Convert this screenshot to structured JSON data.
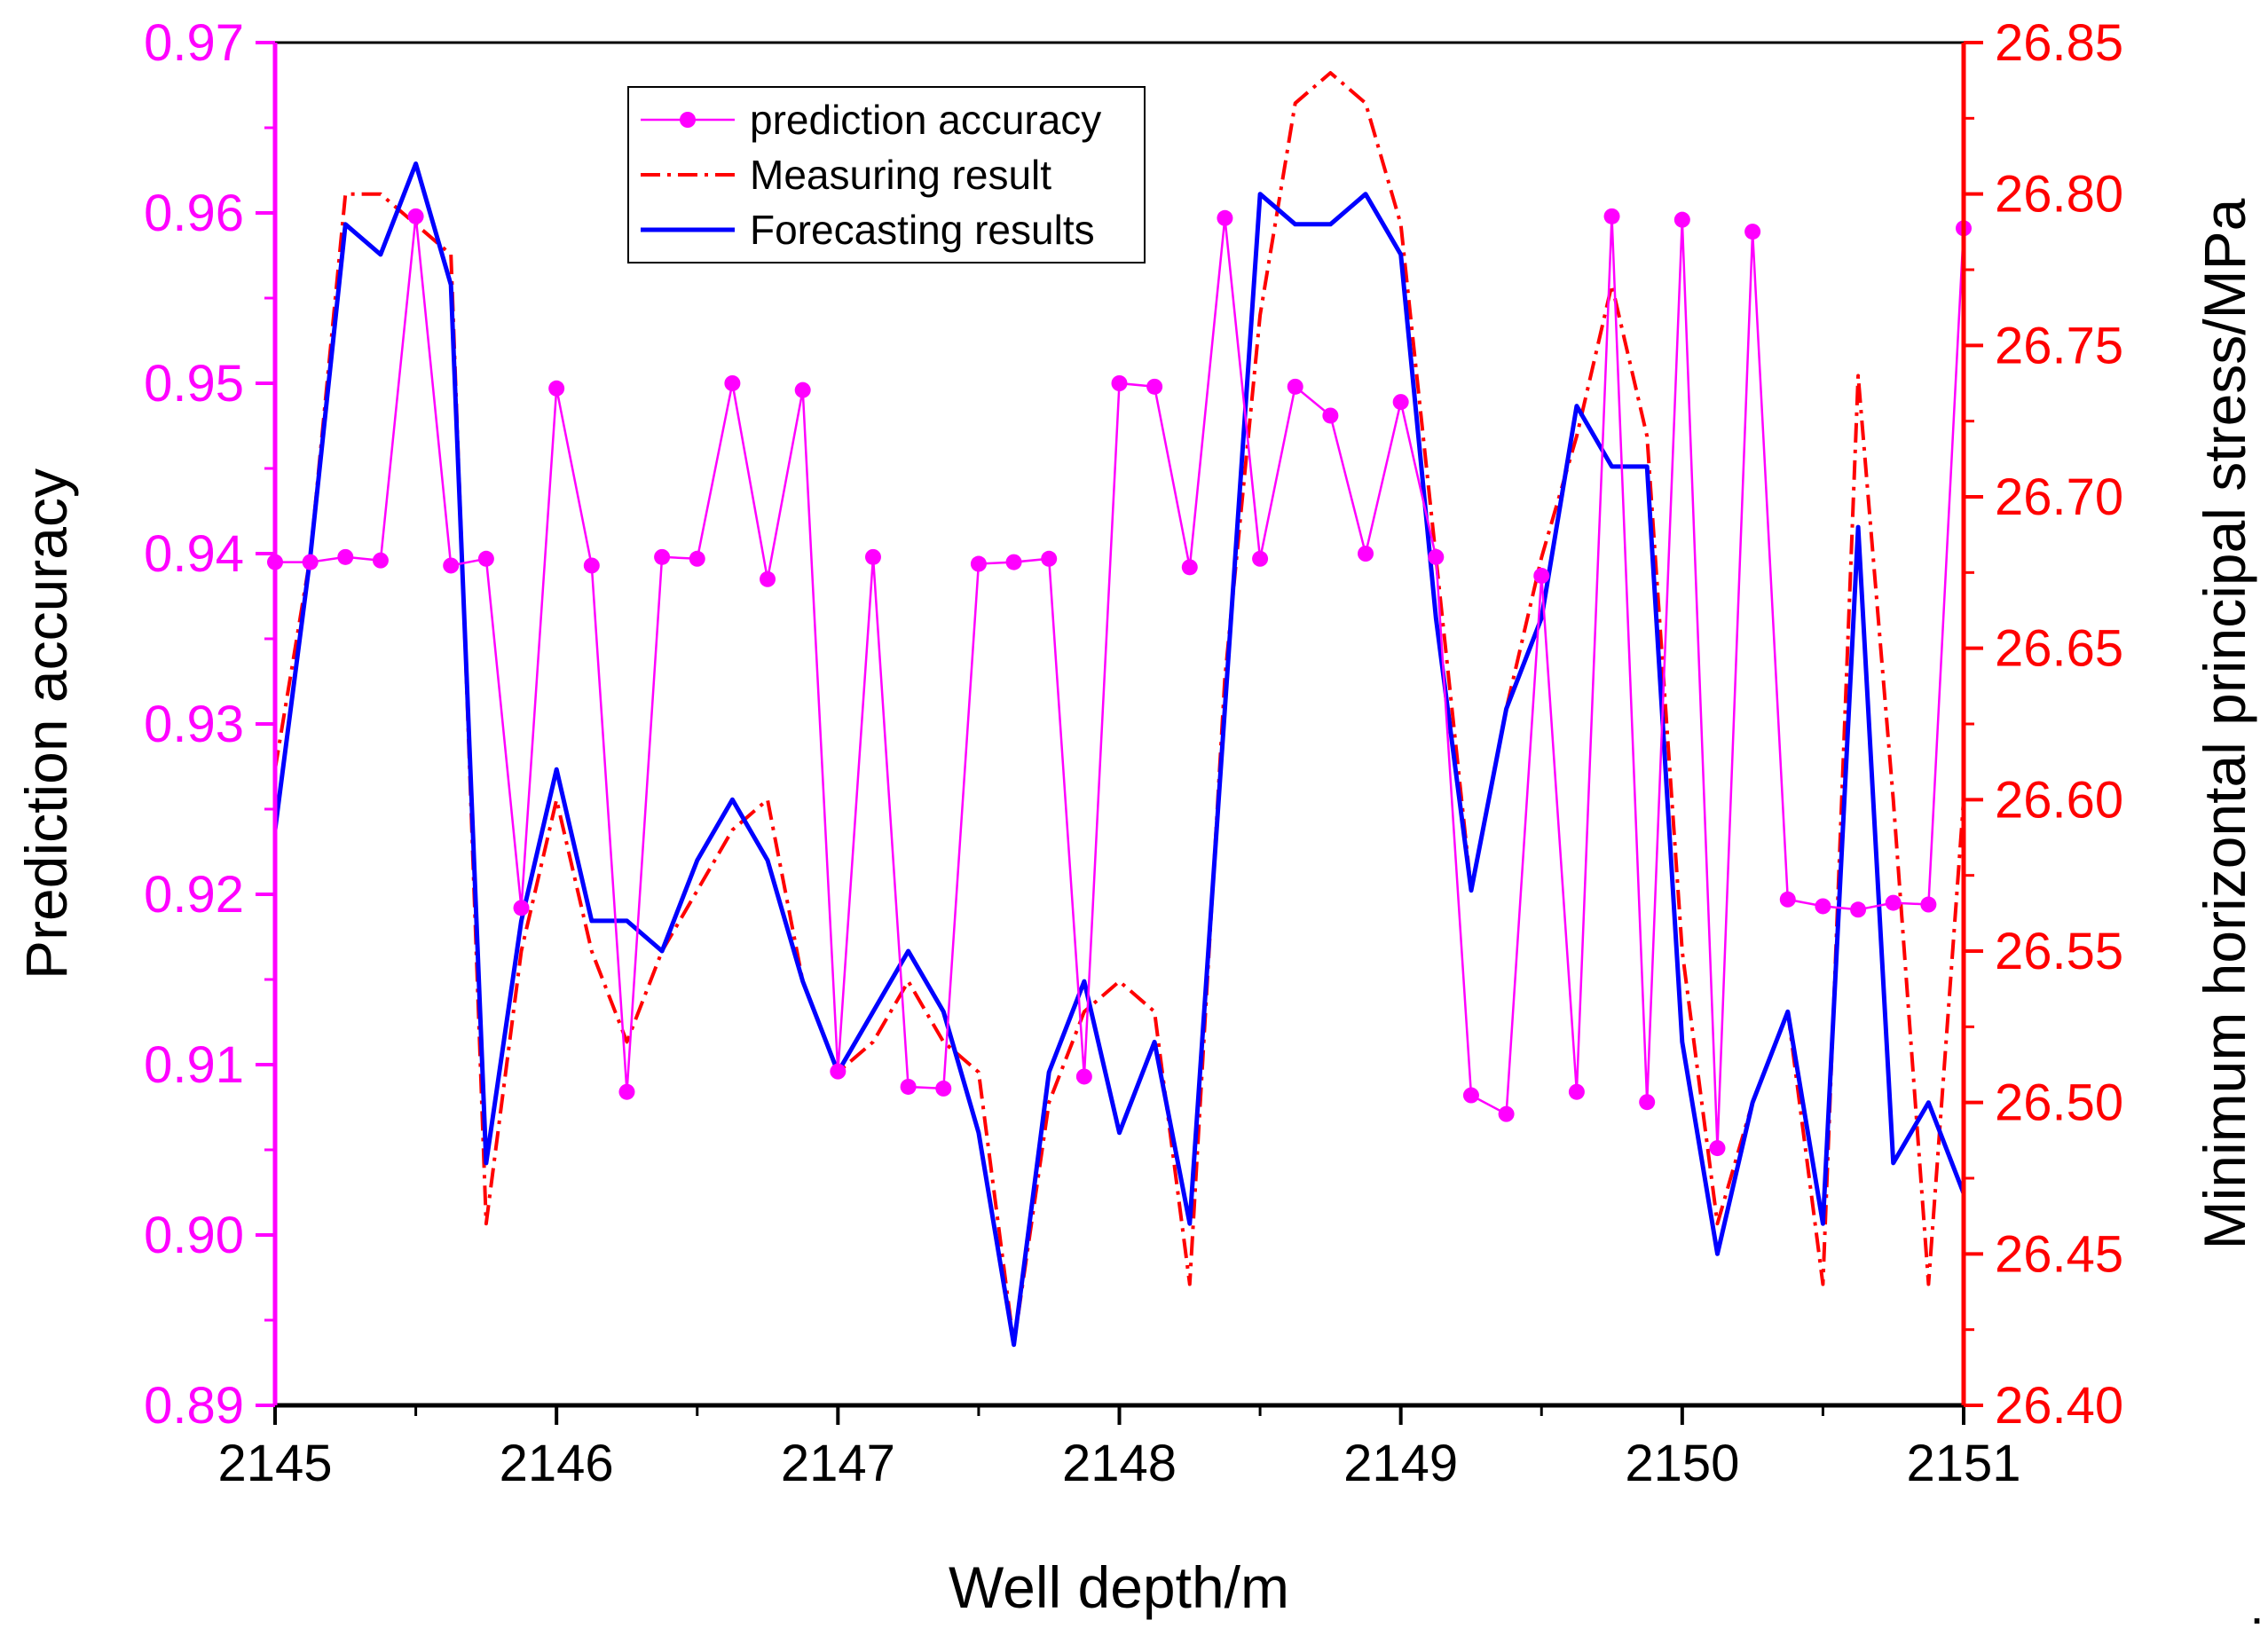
{
  "chart_data": {
    "type": "line",
    "title": "",
    "xlabel": "Well depth/m",
    "ylabel_left": "Prediction accuracy",
    "ylabel_right": "Minimum horizontal principal stress/MPa",
    "xlim": [
      2145,
      2151
    ],
    "ylim_left": [
      0.89,
      0.97
    ],
    "ylim_right": [
      26.4,
      26.85
    ],
    "x_ticks": [
      "2145",
      "2146",
      "2147",
      "2148",
      "2149",
      "2150",
      "2151"
    ],
    "y_left_ticks": [
      "0.89",
      "0.90",
      "0.91",
      "0.92",
      "0.93",
      "0.94",
      "0.95",
      "0.96",
      "0.97"
    ],
    "y_right_ticks": [
      "26.40",
      "26.45",
      "26.50",
      "26.55",
      "26.60",
      "26.65",
      "26.70",
      "26.75",
      "26.80",
      "26.85"
    ],
    "grid": false,
    "legend_position": "top-center",
    "colors": {
      "left_axis": "#ff00ff",
      "right_axis": "#ff0000",
      "accuracy": "#ff00ff",
      "measuring": "#ff0000",
      "forecasting": "#0000ff",
      "frame": "#000000"
    },
    "series": [
      {
        "name": "prediction accuracy",
        "axis": "left",
        "style": "line-marker",
        "x": [
          2145.0,
          2145.125,
          2145.25,
          2145.375,
          2145.5,
          2145.625,
          2145.75,
          2145.875,
          2146.0,
          2146.125,
          2146.25,
          2146.375,
          2146.5,
          2146.625,
          2146.75,
          2146.875,
          2147.0,
          2147.125,
          2147.25,
          2147.375,
          2147.5,
          2147.625,
          2147.75,
          2147.875,
          2148.0,
          2148.125,
          2148.25,
          2148.375,
          2148.5,
          2148.625,
          2148.75,
          2148.875,
          2149.0,
          2149.125,
          2149.25,
          2149.375,
          2149.5,
          2149.625,
          2149.75,
          2149.875,
          2150.0,
          2150.125,
          2150.25,
          2150.375,
          2150.5,
          2150.625,
          2150.75,
          2150.875,
          2151.0
        ],
        "values": [
          0.9395,
          0.9395,
          0.9398,
          0.9396,
          0.9598,
          0.9393,
          0.9397,
          0.9192,
          0.9497,
          0.9393,
          0.9084,
          0.9398,
          0.9397,
          0.95,
          0.9385,
          0.9496,
          0.9096,
          0.9398,
          0.9087,
          0.9086,
          0.9394,
          0.9395,
          0.9397,
          0.9093,
          0.95,
          0.9498,
          0.9392,
          0.9597,
          0.9397,
          0.9498,
          0.9481,
          0.94,
          0.9489,
          0.9398,
          0.9082,
          0.9071,
          0.9387,
          0.9084,
          0.9598,
          0.9078,
          0.9596,
          0.9051,
          0.9589,
          0.9197,
          0.9193,
          0.9191,
          0.9195,
          0.9194,
          0.9591
        ]
      },
      {
        "name": "Measuring result",
        "axis": "right",
        "style": "dash-dot",
        "x": [
          2145.0,
          2145.125,
          2145.25,
          2145.375,
          2145.5,
          2145.625,
          2145.75,
          2145.875,
          2146.0,
          2146.125,
          2146.25,
          2146.375,
          2146.5,
          2146.625,
          2146.75,
          2146.875,
          2147.0,
          2147.125,
          2147.25,
          2147.375,
          2147.5,
          2147.625,
          2147.75,
          2147.875,
          2148.0,
          2148.125,
          2148.25,
          2148.375,
          2148.5,
          2148.625,
          2148.75,
          2148.875,
          2149.0,
          2149.125,
          2149.25,
          2149.375,
          2149.5,
          2149.625,
          2149.75,
          2149.875,
          2150.0,
          2150.125,
          2150.25,
          2150.375,
          2150.5,
          2150.625,
          2150.75,
          2150.875,
          2151.0
        ],
        "values": [
          26.61,
          26.68,
          26.8,
          26.8,
          26.79,
          26.78,
          26.46,
          26.55,
          26.6,
          26.55,
          26.52,
          26.55,
          26.57,
          26.59,
          26.6,
          26.54,
          26.51,
          26.52,
          26.54,
          26.52,
          26.51,
          26.42,
          26.5,
          26.53,
          26.54,
          26.53,
          26.44,
          26.64,
          26.76,
          26.83,
          26.84,
          26.83,
          26.79,
          26.68,
          26.57,
          26.63,
          26.68,
          26.72,
          26.77,
          26.72,
          26.55,
          26.46,
          26.5,
          26.53,
          26.44,
          26.74,
          26.6,
          26.44,
          26.6
        ]
      },
      {
        "name": "Forecasting results",
        "axis": "right",
        "style": "solid",
        "x": [
          2145.0,
          2145.125,
          2145.25,
          2145.375,
          2145.5,
          2145.625,
          2145.75,
          2145.875,
          2146.0,
          2146.125,
          2146.25,
          2146.375,
          2146.5,
          2146.625,
          2146.75,
          2146.875,
          2147.0,
          2147.125,
          2147.25,
          2147.375,
          2147.5,
          2147.625,
          2147.75,
          2147.875,
          2148.0,
          2148.125,
          2148.25,
          2148.375,
          2148.5,
          2148.625,
          2148.75,
          2148.875,
          2149.0,
          2149.125,
          2149.25,
          2149.375,
          2149.5,
          2149.625,
          2149.75,
          2149.875,
          2150.0,
          2150.125,
          2150.25,
          2150.375,
          2150.5,
          2150.625,
          2150.75,
          2150.875,
          2151.0
        ],
        "values": [
          26.59,
          26.68,
          26.79,
          26.78,
          26.81,
          26.77,
          26.48,
          26.56,
          26.61,
          26.56,
          26.56,
          26.55,
          26.58,
          26.6,
          26.58,
          26.54,
          26.51,
          26.53,
          26.55,
          26.53,
          26.49,
          26.42,
          26.51,
          26.54,
          26.49,
          26.52,
          26.46,
          26.63,
          26.8,
          26.79,
          26.79,
          26.8,
          26.78,
          26.66,
          26.57,
          26.63,
          26.66,
          26.73,
          26.71,
          26.71,
          26.52,
          26.45,
          26.5,
          26.53,
          26.46,
          26.69,
          26.48,
          26.5,
          26.47
        ]
      }
    ]
  }
}
